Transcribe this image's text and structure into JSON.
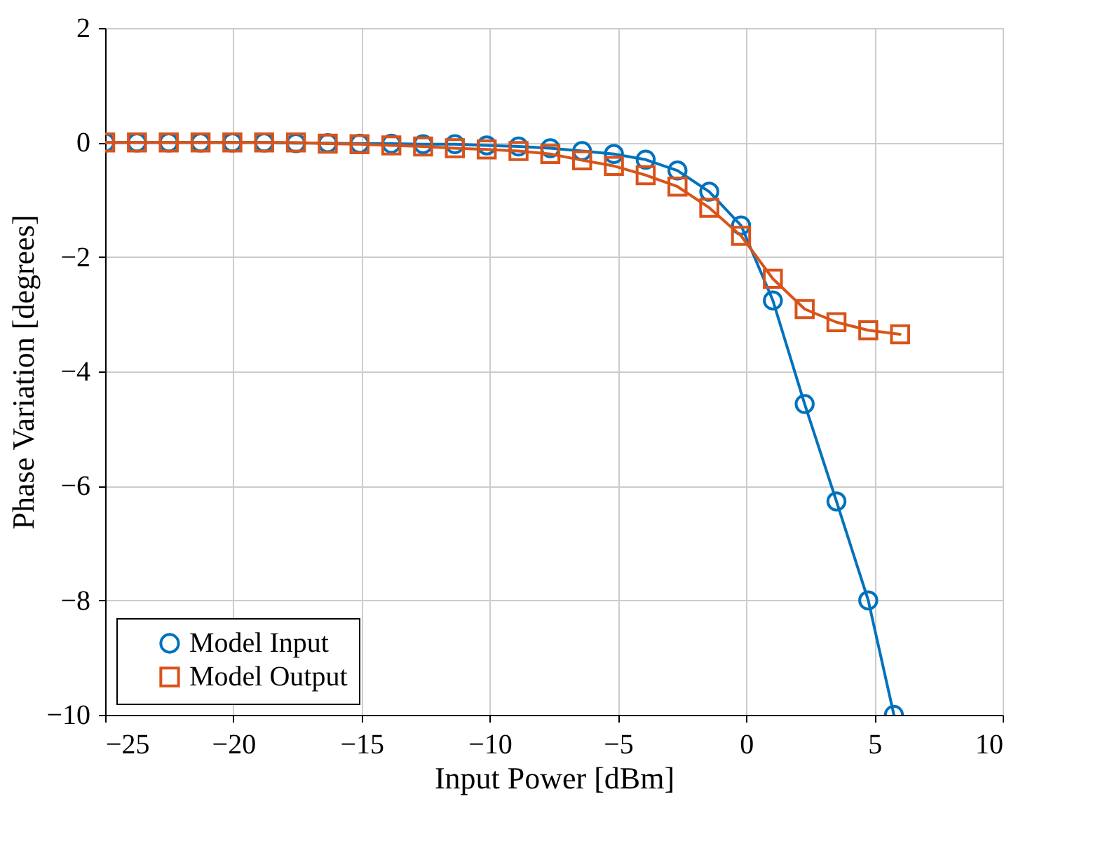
{
  "chart_data": {
    "type": "line",
    "xlabel": "Input Power [dBm]",
    "ylabel": "Phase Variation [degrees]",
    "x": [
      -25,
      -23.76,
      -22.52,
      -21.28,
      -20.04,
      -18.8,
      -17.56,
      -16.32,
      -15.08,
      -13.84,
      -12.6,
      -11.36,
      -10.12,
      -8.88,
      -7.64,
      -6.4,
      -5.16,
      -3.92,
      -2.68,
      -1.44,
      -0.2,
      1.04,
      2.28,
      3.52,
      4.76,
      6.0
    ],
    "series": [
      {
        "name": "Model Input",
        "color": "#0072bd",
        "marker": "circle",
        "x": [
          -25,
          -23.76,
          -22.52,
          -21.28,
          -20.04,
          -18.8,
          -17.56,
          -16.32,
          -15.08,
          -13.84,
          -12.6,
          -11.36,
          -10.12,
          -8.88,
          -7.64,
          -6.4,
          -5.16,
          -3.92,
          -2.68,
          -1.44,
          -0.2,
          1.04,
          2.28,
          3.52,
          4.76,
          5.76
        ],
        "values": [
          0,
          0,
          0,
          0,
          0,
          0,
          -0.01,
          -0.01,
          -0.02,
          -0.02,
          -0.03,
          -0.03,
          -0.05,
          -0.07,
          -0.1,
          -0.15,
          -0.2,
          -0.3,
          -0.49,
          -0.86,
          -1.45,
          -2.76,
          -4.57,
          -6.27,
          -8.0,
          -10
        ]
      },
      {
        "name": "Model Output",
        "color": "#d95319",
        "marker": "square",
        "values": [
          0,
          0,
          0,
          0,
          0,
          0,
          0,
          -0.02,
          -0.03,
          -0.05,
          -0.07,
          -0.1,
          -0.12,
          -0.15,
          -0.2,
          -0.31,
          -0.41,
          -0.57,
          -0.77,
          -1.14,
          -1.63,
          -2.38,
          -2.91,
          -3.14,
          -3.28,
          -3.35
        ]
      }
    ],
    "xlim": [
      -25,
      10
    ],
    "xticks": [
      -25,
      -20,
      -15,
      -10,
      -5,
      0,
      5,
      10
    ],
    "ylim": [
      -10,
      2
    ],
    "yticks": [
      -10,
      -8,
      -6,
      -4,
      -2,
      0,
      2
    ],
    "grid": true,
    "legend": "bottom left",
    "line_style": "solid"
  }
}
